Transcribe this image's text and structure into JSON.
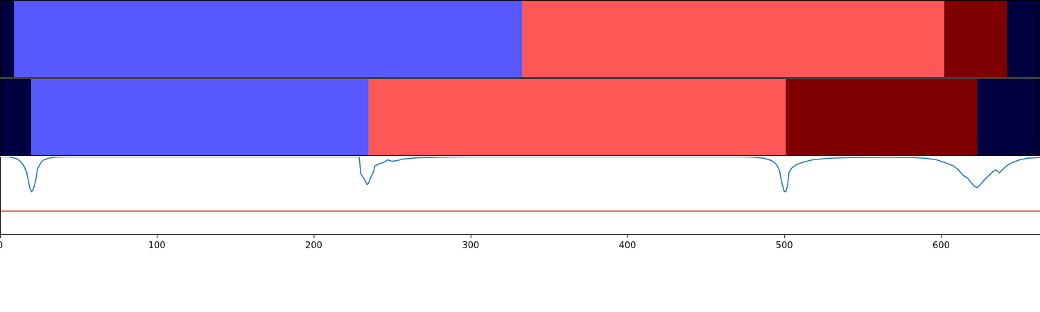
{
  "chart_data": [
    {
      "type": "segment_bar",
      "panel": "top-band",
      "xlim": [
        0,
        663
      ],
      "segments": [
        {
          "start": 0,
          "end": 9,
          "label_class": 0
        },
        {
          "start": 9,
          "end": 333,
          "label_class": 1
        },
        {
          "start": 333,
          "end": 602,
          "label_class": 2
        },
        {
          "start": 602,
          "end": 642,
          "label_class": 3
        },
        {
          "start": 642,
          "end": 663,
          "label_class": 0
        }
      ]
    },
    {
      "type": "segment_bar",
      "panel": "middle-band",
      "xlim": [
        0,
        663
      ],
      "segments": [
        {
          "start": 0,
          "end": 20,
          "label_class": 0
        },
        {
          "start": 20,
          "end": 235,
          "label_class": 1
        },
        {
          "start": 235,
          "end": 501,
          "label_class": 2
        },
        {
          "start": 501,
          "end": 623,
          "label_class": 3
        },
        {
          "start": 623,
          "end": 663,
          "label_class": 0
        }
      ]
    },
    {
      "type": "line",
      "panel": "bottom-plot",
      "xlim": [
        0,
        663
      ],
      "ylim": [
        0,
        1
      ],
      "x_ticks": [
        0,
        100,
        200,
        300,
        400,
        500,
        600
      ],
      "threshold": 0.3,
      "series": [
        {
          "color": "#1f77b4",
          "points": [
            [
              0,
              1.0
            ],
            [
              5,
              1.0
            ],
            [
              8,
              0.99
            ],
            [
              11,
              0.97
            ],
            [
              13,
              0.94
            ],
            [
              15,
              0.89
            ],
            [
              17,
              0.8
            ],
            [
              18,
              0.7
            ],
            [
              19,
              0.6
            ],
            [
              20,
              0.55
            ],
            [
              21,
              0.57
            ],
            [
              22,
              0.63
            ],
            [
              23,
              0.72
            ],
            [
              24,
              0.85
            ],
            [
              26,
              0.92
            ],
            [
              28,
              0.96
            ],
            [
              31,
              0.98
            ],
            [
              35,
              0.995
            ],
            [
              45,
              1.0
            ],
            [
              225,
              1.0
            ],
            [
              229,
              1.0
            ],
            [
              230,
              0.78
            ],
            [
              232,
              0.72
            ],
            [
              233,
              0.68
            ],
            [
              234,
              0.64
            ],
            [
              235,
              0.66
            ],
            [
              236,
              0.72
            ],
            [
              237,
              0.76
            ],
            [
              238,
              0.8
            ],
            [
              239,
              0.88
            ],
            [
              242,
              0.91
            ],
            [
              245,
              0.93
            ],
            [
              247,
              0.96
            ],
            [
              250,
              0.94
            ],
            [
              253,
              0.95
            ],
            [
              257,
              0.97
            ],
            [
              265,
              0.985
            ],
            [
              280,
              0.995
            ],
            [
              300,
              1.0
            ],
            [
              470,
              1.0
            ],
            [
              480,
              0.995
            ],
            [
              487,
              0.98
            ],
            [
              492,
              0.95
            ],
            [
              495,
              0.9
            ],
            [
              497,
              0.82
            ],
            [
              498,
              0.7
            ],
            [
              499,
              0.62
            ],
            [
              500,
              0.55
            ],
            [
              501,
              0.55
            ],
            [
              502,
              0.62
            ],
            [
              503,
              0.8
            ],
            [
              505,
              0.86
            ],
            [
              508,
              0.9
            ],
            [
              512,
              0.93
            ],
            [
              518,
              0.96
            ],
            [
              528,
              0.98
            ],
            [
              545,
              0.99
            ],
            [
              565,
              0.995
            ],
            [
              580,
              0.99
            ],
            [
              590,
              0.98
            ],
            [
              597,
              0.96
            ],
            [
              603,
              0.92
            ],
            [
              608,
              0.88
            ],
            [
              611,
              0.83
            ],
            [
              614,
              0.76
            ],
            [
              617,
              0.72
            ],
            [
              619,
              0.67
            ],
            [
              621,
              0.62
            ],
            [
              623,
              0.6
            ],
            [
              625,
              0.64
            ],
            [
              627,
              0.69
            ],
            [
              629,
              0.73
            ],
            [
              631,
              0.77
            ],
            [
              633,
              0.81
            ],
            [
              635,
              0.83
            ],
            [
              637,
              0.79
            ],
            [
              639,
              0.83
            ],
            [
              641,
              0.87
            ],
            [
              643,
              0.9
            ],
            [
              646,
              0.93
            ],
            [
              650,
              0.96
            ],
            [
              655,
              0.98
            ],
            [
              663,
              0.99
            ]
          ]
        }
      ]
    }
  ],
  "colors": {
    "label_class_0": "#000040",
    "label_class_1": "#5858ff",
    "label_class_2": "#ff5656",
    "label_class_3": "#7f0000",
    "threshold_line": "#e31a1c",
    "panel_border": "#000000"
  }
}
